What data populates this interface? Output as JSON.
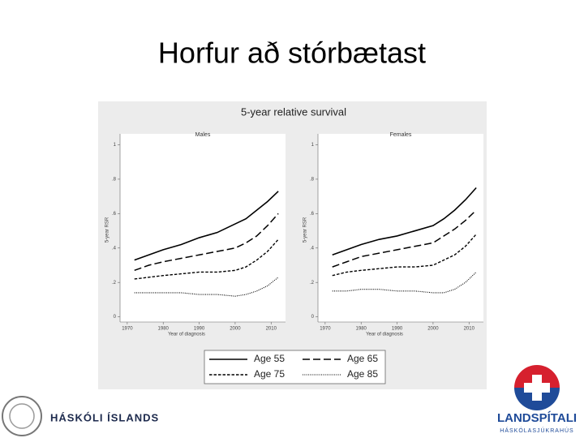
{
  "title": "Horfur að stórbætast",
  "chart_data": {
    "type": "line",
    "title": "5-year relative survival",
    "panels": [
      "Males",
      "Females"
    ],
    "xlabel": "Year of diagnosis",
    "ylabel": "5-year RSR",
    "x": [
      1972,
      1976,
      1980,
      1985,
      1990,
      1995,
      2000,
      2003,
      2006,
      2009,
      2012
    ],
    "xlim": [
      1968,
      2014
    ],
    "xticks": [
      1970,
      1980,
      1990,
      2000,
      2010
    ],
    "ylim": [
      -0.03,
      1.04
    ],
    "yticks": [
      0,
      {
        "value": 0.2,
        "label": ".2"
      },
      {
        "value": 0.4,
        "label": ".4"
      },
      {
        "value": 0.6,
        "label": ".6"
      },
      {
        "value": 0.8,
        "label": ".8"
      },
      1
    ],
    "grid": false,
    "series": [
      {
        "name": "Age 55",
        "color": "#000000",
        "dash": "solid",
        "values": [
          [
            0.33,
            0.36,
            0.39,
            0.42,
            0.46,
            0.49,
            0.54,
            0.57,
            0.62,
            0.67,
            0.73
          ],
          [
            0.36,
            0.39,
            0.42,
            0.45,
            0.47,
            0.5,
            0.53,
            0.57,
            0.62,
            0.68,
            0.75
          ]
        ]
      },
      {
        "name": "Age 65",
        "color": "#000000",
        "dash": "dashed",
        "values": [
          [
            0.27,
            0.3,
            0.32,
            0.34,
            0.36,
            0.38,
            0.4,
            0.43,
            0.47,
            0.53,
            0.6
          ],
          [
            0.29,
            0.32,
            0.35,
            0.37,
            0.39,
            0.41,
            0.43,
            0.47,
            0.51,
            0.56,
            0.62
          ]
        ]
      },
      {
        "name": "Age 75",
        "color": "#000000",
        "dash": "short-dash",
        "values": [
          [
            0.22,
            0.23,
            0.24,
            0.25,
            0.26,
            0.26,
            0.27,
            0.29,
            0.33,
            0.38,
            0.45
          ],
          [
            0.24,
            0.26,
            0.27,
            0.28,
            0.29,
            0.29,
            0.3,
            0.33,
            0.36,
            0.41,
            0.48
          ]
        ]
      },
      {
        "name": "Age 85",
        "color": "#000000",
        "dash": "dotted",
        "values": [
          [
            0.14,
            0.14,
            0.14,
            0.14,
            0.13,
            0.13,
            0.12,
            0.13,
            0.15,
            0.18,
            0.23
          ],
          [
            0.15,
            0.15,
            0.16,
            0.16,
            0.15,
            0.15,
            0.14,
            0.14,
            0.16,
            0.2,
            0.26
          ]
        ]
      }
    ]
  },
  "logos": {
    "university": "HÁSKÓLI ÍSLANDS",
    "hospital": "LANDSPÍTALI",
    "hospital_sub": "HÁSKÓLASJÚKRAHÚS"
  }
}
